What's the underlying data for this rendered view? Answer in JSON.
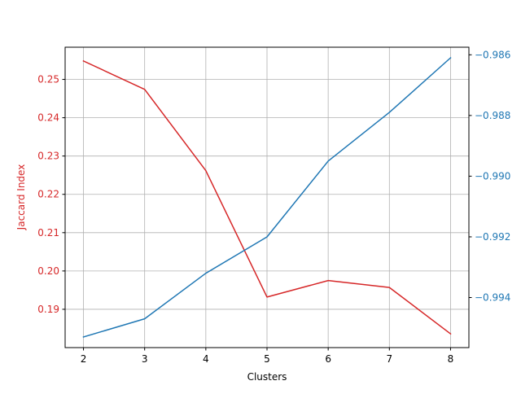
{
  "chart_data": {
    "type": "line",
    "x": [
      2,
      3,
      4,
      5,
      6,
      7,
      8
    ],
    "xlabel": "Clusters",
    "xlim": [
      1.7,
      8.3
    ],
    "x_ticks": [
      "2",
      "3",
      "4",
      "5",
      "6",
      "7",
      "8"
    ],
    "grid": true,
    "series": [
      {
        "values": [
          0.2548,
          0.2474,
          0.2262,
          0.1932,
          0.1975,
          0.1957,
          0.1836
        ],
        "color": "#d62728",
        "axis": "left"
      },
      {
        "values": [
          -0.9953,
          -0.9947,
          -0.9932,
          -0.992,
          -0.9895,
          -0.9879,
          -0.9861
        ],
        "color": "#1f77b4",
        "axis": "right"
      }
    ],
    "left_axis": {
      "label": "Jaccard Index",
      "color": "#d62728",
      "lim": [
        0.18,
        0.2584
      ],
      "ticks": [
        0.19,
        0.2,
        0.21,
        0.22,
        0.23,
        0.24,
        0.25
      ],
      "tick_labels": [
        "0.19",
        "0.20",
        "0.21",
        "0.22",
        "0.23",
        "0.24",
        "0.25"
      ]
    },
    "right_axis": {
      "label": "",
      "color": "#1f77b4",
      "lim": [
        -0.99565,
        -0.98575
      ],
      "ticks": [
        -0.994,
        -0.992,
        -0.99,
        -0.988,
        -0.986
      ],
      "tick_labels": [
        "−0.994",
        "−0.992",
        "−0.990",
        "−0.988",
        "−0.986"
      ]
    }
  }
}
